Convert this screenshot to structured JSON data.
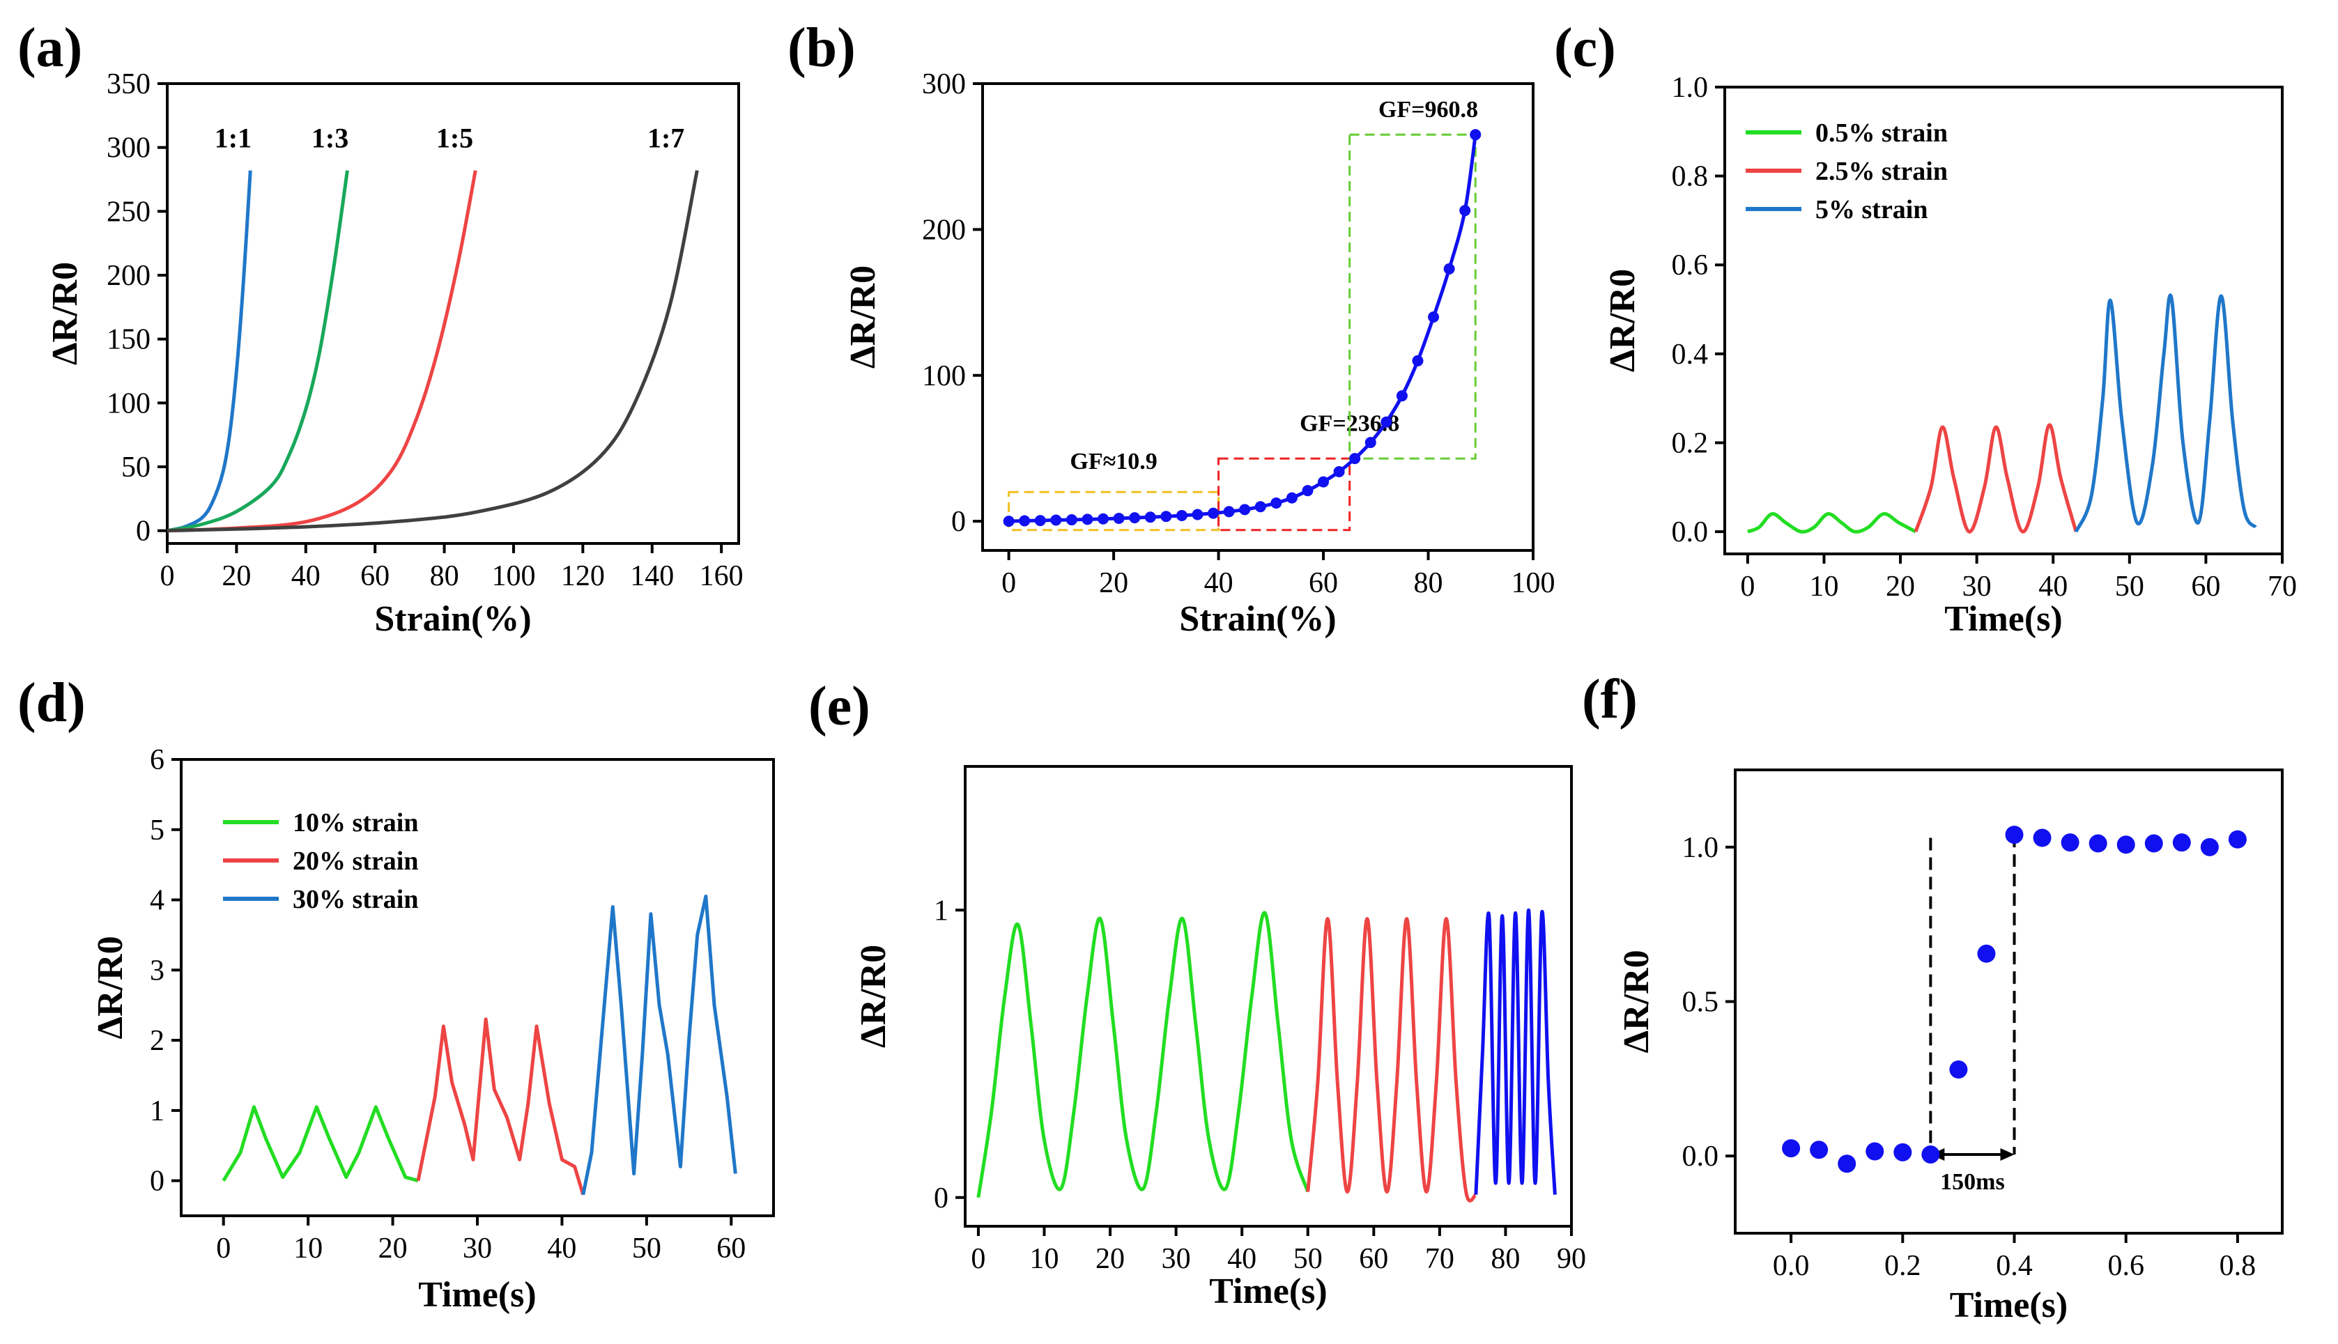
{
  "colors": {
    "axis": "#000000",
    "blue": "#1f77c9",
    "pure_blue": "#1010f0",
    "green": "#18a85a",
    "bright_green": "#22dd22",
    "red": "#ee4444",
    "gray": "#404040",
    "yellow_dash": "#f0c020",
    "red_dash": "#ee2222",
    "green_dash": "#66cc33"
  },
  "chart_data": [
    {
      "panel": "(a)",
      "type": "line",
      "xlabel": "Strain(%)",
      "ylabel": "ΔR/R0",
      "xlim": [
        0,
        165
      ],
      "ylim": [
        -10,
        350
      ],
      "xticks": [
        "0",
        "20",
        "40",
        "60",
        "80",
        "100",
        "120",
        "140",
        "160"
      ],
      "xtick_values": [
        0,
        20,
        40,
        60,
        80,
        100,
        120,
        140,
        160
      ],
      "yticks": [
        "0",
        "50",
        "100",
        "150",
        "200",
        "250",
        "300",
        "350"
      ],
      "ytick_values": [
        0,
        50,
        100,
        150,
        200,
        250,
        300,
        350
      ],
      "series": [
        {
          "name": "1:1",
          "color": "#1f77c9",
          "x": [
            0,
            5,
            10,
            13,
            16,
            18,
            20,
            22,
            24
          ],
          "y": [
            0,
            3,
            10,
            22,
            45,
            75,
            125,
            195,
            282
          ]
        },
        {
          "name": "1:3",
          "color": "#18a85a",
          "x": [
            0,
            10,
            20,
            30,
            35,
            40,
            44,
            48,
            52
          ],
          "y": [
            0,
            5,
            15,
            35,
            58,
            95,
            140,
            205,
            282
          ]
        },
        {
          "name": "1:5",
          "color": "#ee4444",
          "x": [
            0,
            20,
            40,
            55,
            65,
            72,
            78,
            84,
            89
          ],
          "y": [
            0,
            2,
            7,
            22,
            48,
            88,
            140,
            210,
            282
          ]
        },
        {
          "name": "1:7",
          "color": "#404040",
          "x": [
            0,
            40,
            70,
            90,
            110,
            125,
            135,
            145,
            153
          ],
          "y": [
            0,
            3,
            8,
            15,
            30,
            58,
            100,
            175,
            282
          ]
        }
      ]
    },
    {
      "panel": "(b)",
      "type": "scatter",
      "xlabel": "Strain(%)",
      "ylabel": "ΔR/R0",
      "xlim": [
        -5,
        100
      ],
      "ylim": [
        -20,
        300
      ],
      "xticks": [
        "0",
        "20",
        "40",
        "60",
        "80",
        "100"
      ],
      "xtick_values": [
        0,
        20,
        40,
        60,
        80,
        100
      ],
      "yticks": [
        "0",
        "100",
        "200",
        "300"
      ],
      "ytick_values": [
        0,
        100,
        200,
        300
      ],
      "series": [
        {
          "color": "#1010f0",
          "x": [
            0,
            3,
            6,
            9,
            12,
            15,
            18,
            21,
            24,
            27,
            30,
            33,
            36,
            39,
            42,
            45,
            48,
            51,
            54,
            57,
            60,
            63,
            66,
            69,
            72,
            75,
            78,
            81,
            84,
            87,
            89
          ],
          "y": [
            0,
            0.3,
            0.5,
            0.8,
            1,
            1.3,
            1.6,
            2,
            2.4,
            2.8,
            3.3,
            3.9,
            4.6,
            5.5,
            6.6,
            8,
            10,
            12.5,
            16,
            21,
            27,
            34,
            43,
            54,
            68,
            86,
            110,
            140,
            173,
            213,
            265
          ]
        }
      ],
      "annotations": [
        {
          "text": "GF≈10.9",
          "x": 20,
          "y": 36,
          "box": {
            "x0": 0,
            "x1": 40,
            "y0": -6,
            "y1": 20,
            "color": "#f0c020"
          }
        },
        {
          "text": "GF=236.8",
          "x": 65,
          "y": 62,
          "box": {
            "x0": 40,
            "x1": 65,
            "y0": -6,
            "y1": 43,
            "color": "#ee2222"
          }
        },
        {
          "text": "GF=960.8",
          "x": 80,
          "y": 277,
          "box": {
            "x0": 65,
            "x1": 89,
            "y0": 43,
            "y1": 265,
            "color": "#66cc33"
          }
        }
      ]
    },
    {
      "panel": "(c)",
      "type": "line",
      "xlabel": "Time(s)",
      "ylabel": "ΔR/R0",
      "xlim": [
        -3,
        70
      ],
      "ylim": [
        -0.05,
        1.0
      ],
      "xticks": [
        "0",
        "10",
        "20",
        "30",
        "40",
        "50",
        "60",
        "70"
      ],
      "xtick_values": [
        0,
        10,
        20,
        30,
        40,
        50,
        60,
        70
      ],
      "yticks": [
        "0.0",
        "0.2",
        "0.4",
        "0.6",
        "0.8",
        "1.0"
      ],
      "ytick_values": [
        0,
        0.2,
        0.4,
        0.6,
        0.8,
        1.0
      ],
      "series": [
        {
          "name": "0.5%  strain",
          "color": "#22dd22",
          "x": [
            0,
            1.5,
            3.2,
            5,
            7,
            8.7,
            10.5,
            12.3,
            14,
            15.8,
            17.8,
            19.8,
            22
          ],
          "y": [
            0,
            0.01,
            0.04,
            0.02,
            0,
            0.01,
            0.04,
            0.02,
            0,
            0.01,
            0.04,
            0.02,
            0
          ]
        },
        {
          "name": "2.5%  strain",
          "color": "#ee4444",
          "x": [
            22,
            24,
            25.5,
            27,
            29,
            31,
            32.5,
            34,
            36,
            38,
            39.5,
            41,
            43
          ],
          "y": [
            0,
            0.1,
            0.235,
            0.12,
            0,
            0.1,
            0.235,
            0.12,
            0,
            0.1,
            0.24,
            0.12,
            0
          ]
        },
        {
          "name": " 5%    strain",
          "color": "#1f77c9",
          "x": [
            43,
            45,
            46.5,
            47.5,
            49,
            51,
            53,
            54.5,
            55.5,
            57,
            59,
            60.5,
            62,
            63.5,
            65,
            66.5
          ],
          "y": [
            0,
            0.08,
            0.3,
            0.52,
            0.25,
            0.02,
            0.15,
            0.4,
            0.525,
            0.2,
            0.02,
            0.25,
            0.53,
            0.25,
            0.05,
            0.01
          ]
        }
      ],
      "legend": "top-left"
    },
    {
      "panel": "(d)",
      "type": "line",
      "xlabel": "Time(s)",
      "ylabel": "ΔR/R0",
      "xlim": [
        -5,
        65
      ],
      "ylim": [
        -0.5,
        6
      ],
      "xticks": [
        "0",
        "10",
        "20",
        "30",
        "40",
        "50",
        "60"
      ],
      "xtick_values": [
        0,
        10,
        20,
        30,
        40,
        50,
        60
      ],
      "yticks": [
        "0",
        "1",
        "2",
        "3",
        "4",
        "5",
        "6"
      ],
      "ytick_values": [
        0,
        1,
        2,
        3,
        4,
        5,
        6
      ],
      "series": [
        {
          "name": "10% strain",
          "color": "#22dd22",
          "x": [
            0,
            2,
            3.6,
            5,
            7,
            9,
            11,
            12.5,
            14.5,
            16,
            18,
            19.5,
            21.5,
            23
          ],
          "y": [
            0,
            0.4,
            1.05,
            0.6,
            0.05,
            0.4,
            1.05,
            0.6,
            0.05,
            0.4,
            1.05,
            0.6,
            0.05,
            0
          ]
        },
        {
          "name": "20% strain",
          "color": "#ee4444",
          "x": [
            23,
            25,
            26,
            27,
            28.5,
            29.5,
            31,
            32,
            33.5,
            35,
            36,
            37,
            38.5,
            40,
            41.5,
            42.5
          ],
          "y": [
            0,
            1.2,
            2.2,
            1.4,
            0.8,
            0.3,
            2.3,
            1.3,
            0.9,
            0.3,
            1.1,
            2.2,
            1.1,
            0.3,
            0.2,
            -0.2
          ]
        },
        {
          "name": "30% strain",
          "color": "#1f77c9",
          "x": [
            42.5,
            43.5,
            45,
            46,
            47,
            48.5,
            49.5,
            50.5,
            51.5,
            52.5,
            54,
            55,
            56,
            57,
            58,
            59.5,
            60.5
          ],
          "y": [
            -0.2,
            0.4,
            2.5,
            3.9,
            2.5,
            0.1,
            1.8,
            3.8,
            2.5,
            1.8,
            0.2,
            2.0,
            3.5,
            4.05,
            2.5,
            1.2,
            0.1
          ]
        }
      ],
      "legend": "top-left"
    },
    {
      "panel": "(e)",
      "type": "line",
      "xlabel": "Time(s)",
      "ylabel": "ΔR/R0",
      "xlim": [
        -2,
        90
      ],
      "ylim": [
        -0.1,
        1.5
      ],
      "xticks": [
        "0",
        "10",
        "20",
        "30",
        "40",
        "50",
        "60",
        "70",
        "80",
        "90"
      ],
      "xtick_values": [
        0,
        10,
        20,
        30,
        40,
        50,
        60,
        70,
        80,
        90
      ],
      "yticks": [
        "0",
        "1"
      ],
      "ytick_values": [
        0,
        1
      ],
      "series": [
        {
          "color": "#22dd22",
          "x": [
            0,
            2,
            4,
            6,
            8,
            10,
            12.5,
            14.5,
            16.5,
            18.5,
            20.5,
            22.5,
            25,
            27,
            29,
            31,
            33,
            35,
            37.5,
            39.5,
            41.5,
            43.5,
            45.5,
            47.5,
            50
          ],
          "y": [
            0,
            0.3,
            0.7,
            0.95,
            0.6,
            0.2,
            0.03,
            0.3,
            0.7,
            0.97,
            0.6,
            0.2,
            0.03,
            0.3,
            0.7,
            0.97,
            0.6,
            0.2,
            0.03,
            0.3,
            0.7,
            0.99,
            0.6,
            0.2,
            0.02
          ]
        },
        {
          "color": "#ee4444",
          "x": [
            50,
            51.5,
            53,
            54.5,
            56,
            57.5,
            59,
            60.5,
            62,
            63.5,
            65,
            66.5,
            68,
            69.5,
            71,
            72.5,
            74,
            75.5
          ],
          "y": [
            0.02,
            0.4,
            0.97,
            0.4,
            0.02,
            0.4,
            0.97,
            0.4,
            0.02,
            0.4,
            0.97,
            0.4,
            0.02,
            0.4,
            0.97,
            0.4,
            0.02,
            0.01
          ]
        },
        {
          "color": "#1010f0",
          "x": [
            75.5,
            76.5,
            77.5,
            78.5,
            79.5,
            80.5,
            81.5,
            82.5,
            83.5,
            84.5,
            85.5,
            86.5,
            87.5
          ],
          "y": [
            0.01,
            0.5,
            0.98,
            0.05,
            0.98,
            0.05,
            0.99,
            0.05,
            1.0,
            0.05,
            0.99,
            0.4,
            0.01
          ]
        }
      ]
    },
    {
      "panel": "(f)",
      "type": "scatter",
      "xlabel": "Time(s)",
      "ylabel": "ΔR/R0",
      "xlim": [
        -0.1,
        0.88
      ],
      "ylim": [
        -0.25,
        1.25
      ],
      "xticks": [
        "0.0",
        "0.2",
        "0.4",
        "0.6",
        "0.8"
      ],
      "xtick_values": [
        0,
        0.2,
        0.4,
        0.6,
        0.8
      ],
      "yticks": [
        "0.0",
        "0.5",
        "1.0"
      ],
      "ytick_values": [
        0,
        0.5,
        1.0
      ],
      "series": [
        {
          "color": "#1010f0",
          "x": [
            0,
            0.05,
            0.1,
            0.15,
            0.2,
            0.25,
            0.3,
            0.35,
            0.4,
            0.45,
            0.5,
            0.55,
            0.6,
            0.65,
            0.7,
            0.75,
            0.8
          ],
          "y": [
            0.025,
            0.02,
            -0.025,
            0.015,
            0.012,
            0.005,
            0.28,
            0.655,
            1.04,
            1.03,
            1.015,
            1.012,
            1.008,
            1.012,
            1.015,
            1.0,
            1.025
          ]
        }
      ],
      "annotations": [
        {
          "text": "150ms",
          "x0": 0.25,
          "x1": 0.4
        }
      ]
    }
  ],
  "panels": [
    {
      "letter": "(a)",
      "tick_font": 40,
      "label_font": 46,
      "curve_labels": [
        {
          "text": "1:1",
          "x": 19,
          "y": 300
        },
        {
          "text": "1:3",
          "x": 47,
          "y": 300
        },
        {
          "text": "1:5",
          "x": 83,
          "y": 300
        },
        {
          "text": "1:7",
          "x": 144,
          "y": 300
        }
      ]
    },
    {
      "letter": "(b)"
    },
    {
      "letter": "(c)"
    },
    {
      "letter": "(d)"
    },
    {
      "letter": "(e)"
    },
    {
      "letter": "(f)"
    }
  ]
}
